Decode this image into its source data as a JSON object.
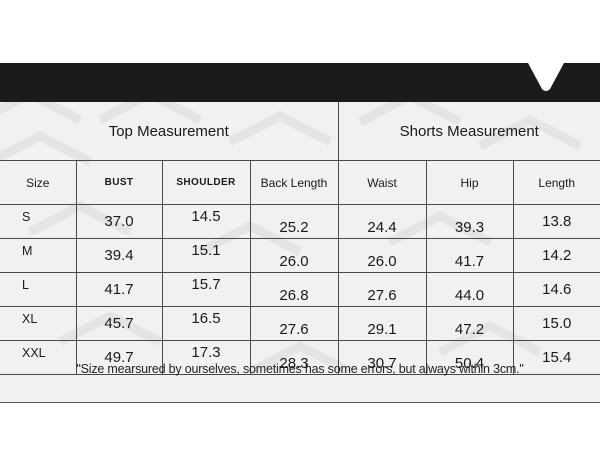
{
  "chart_data": {
    "type": "table",
    "groups": [
      {
        "label": "Top Measurement",
        "columns": [
          "BUST",
          "SHOULDER",
          "Back Length"
        ]
      },
      {
        "label": "Shorts Measurement",
        "columns": [
          "Waist",
          "Hip",
          "Length"
        ]
      }
    ],
    "size_label": "Size",
    "rows": [
      {
        "size": "S",
        "values": [
          "37.0",
          "14.5",
          "25.2",
          "24.4",
          "39.3",
          "13.8"
        ]
      },
      {
        "size": "M",
        "values": [
          "39.4",
          "15.1",
          "26.0",
          "26.0",
          "41.7",
          "14.2"
        ]
      },
      {
        "size": "L",
        "values": [
          "41.7",
          "15.7",
          "26.8",
          "27.6",
          "44.0",
          "14.6"
        ]
      },
      {
        "size": "XL",
        "values": [
          "45.7",
          "16.5",
          "27.6",
          "29.1",
          "47.2",
          "15.0"
        ]
      },
      {
        "size": "XXL",
        "values": [
          "49.7",
          "17.3",
          "28.3",
          "30.7",
          "50.4",
          "15.4"
        ]
      }
    ]
  },
  "note": "\"Size mearsured by ourselves, sometimes has some errors, but always within 3cm.\"",
  "colors": {
    "band": "#1b1b1b",
    "table_bg": "#f1f1f1",
    "border": "#4a4a4a"
  }
}
